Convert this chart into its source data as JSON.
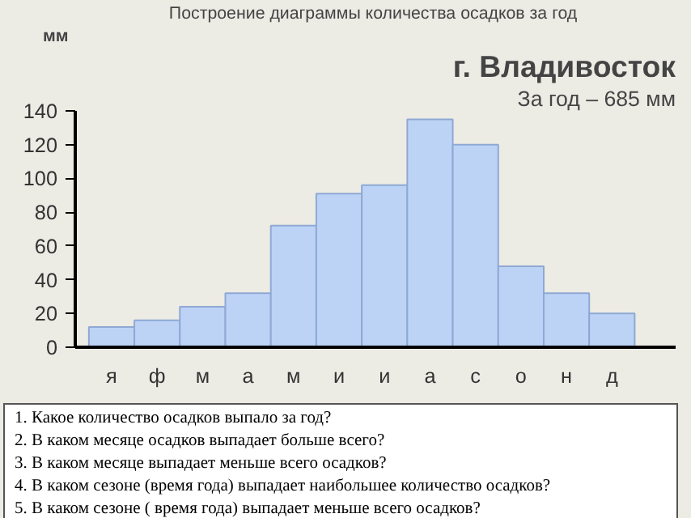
{
  "chart_data": {
    "type": "bar",
    "title": "Построение диаграммы  количества осадков за год",
    "subtitle": "г. Владивосток",
    "ylabel": "мм",
    "categories": [
      "я",
      "ф",
      "м",
      "а",
      "м",
      "и",
      "и",
      "а",
      "с",
      "о",
      "н",
      "д"
    ],
    "values": [
      12,
      16,
      24,
      32,
      72,
      91,
      96,
      135,
      120,
      48,
      32,
      20
    ],
    "color": "#bcd3f6",
    "ylim": [
      0,
      140
    ],
    "yticks": [
      0,
      20,
      40,
      60,
      80,
      100,
      120,
      140
    ],
    "grid": false,
    "annotations": [
      "За год – 685 мм",
      "1. Какое количество осадков выпало за год?",
      "2. В каком месяце осадков выпадает больше всего?",
      "3. В каком месяце выпадает меньше всего осадков?",
      "4. В каком сезоне (время года) выпадает наибольшее количество осадков?",
      "5. В каком сезоне ( время года) выпадает меньше всего осадков?"
    ]
  }
}
